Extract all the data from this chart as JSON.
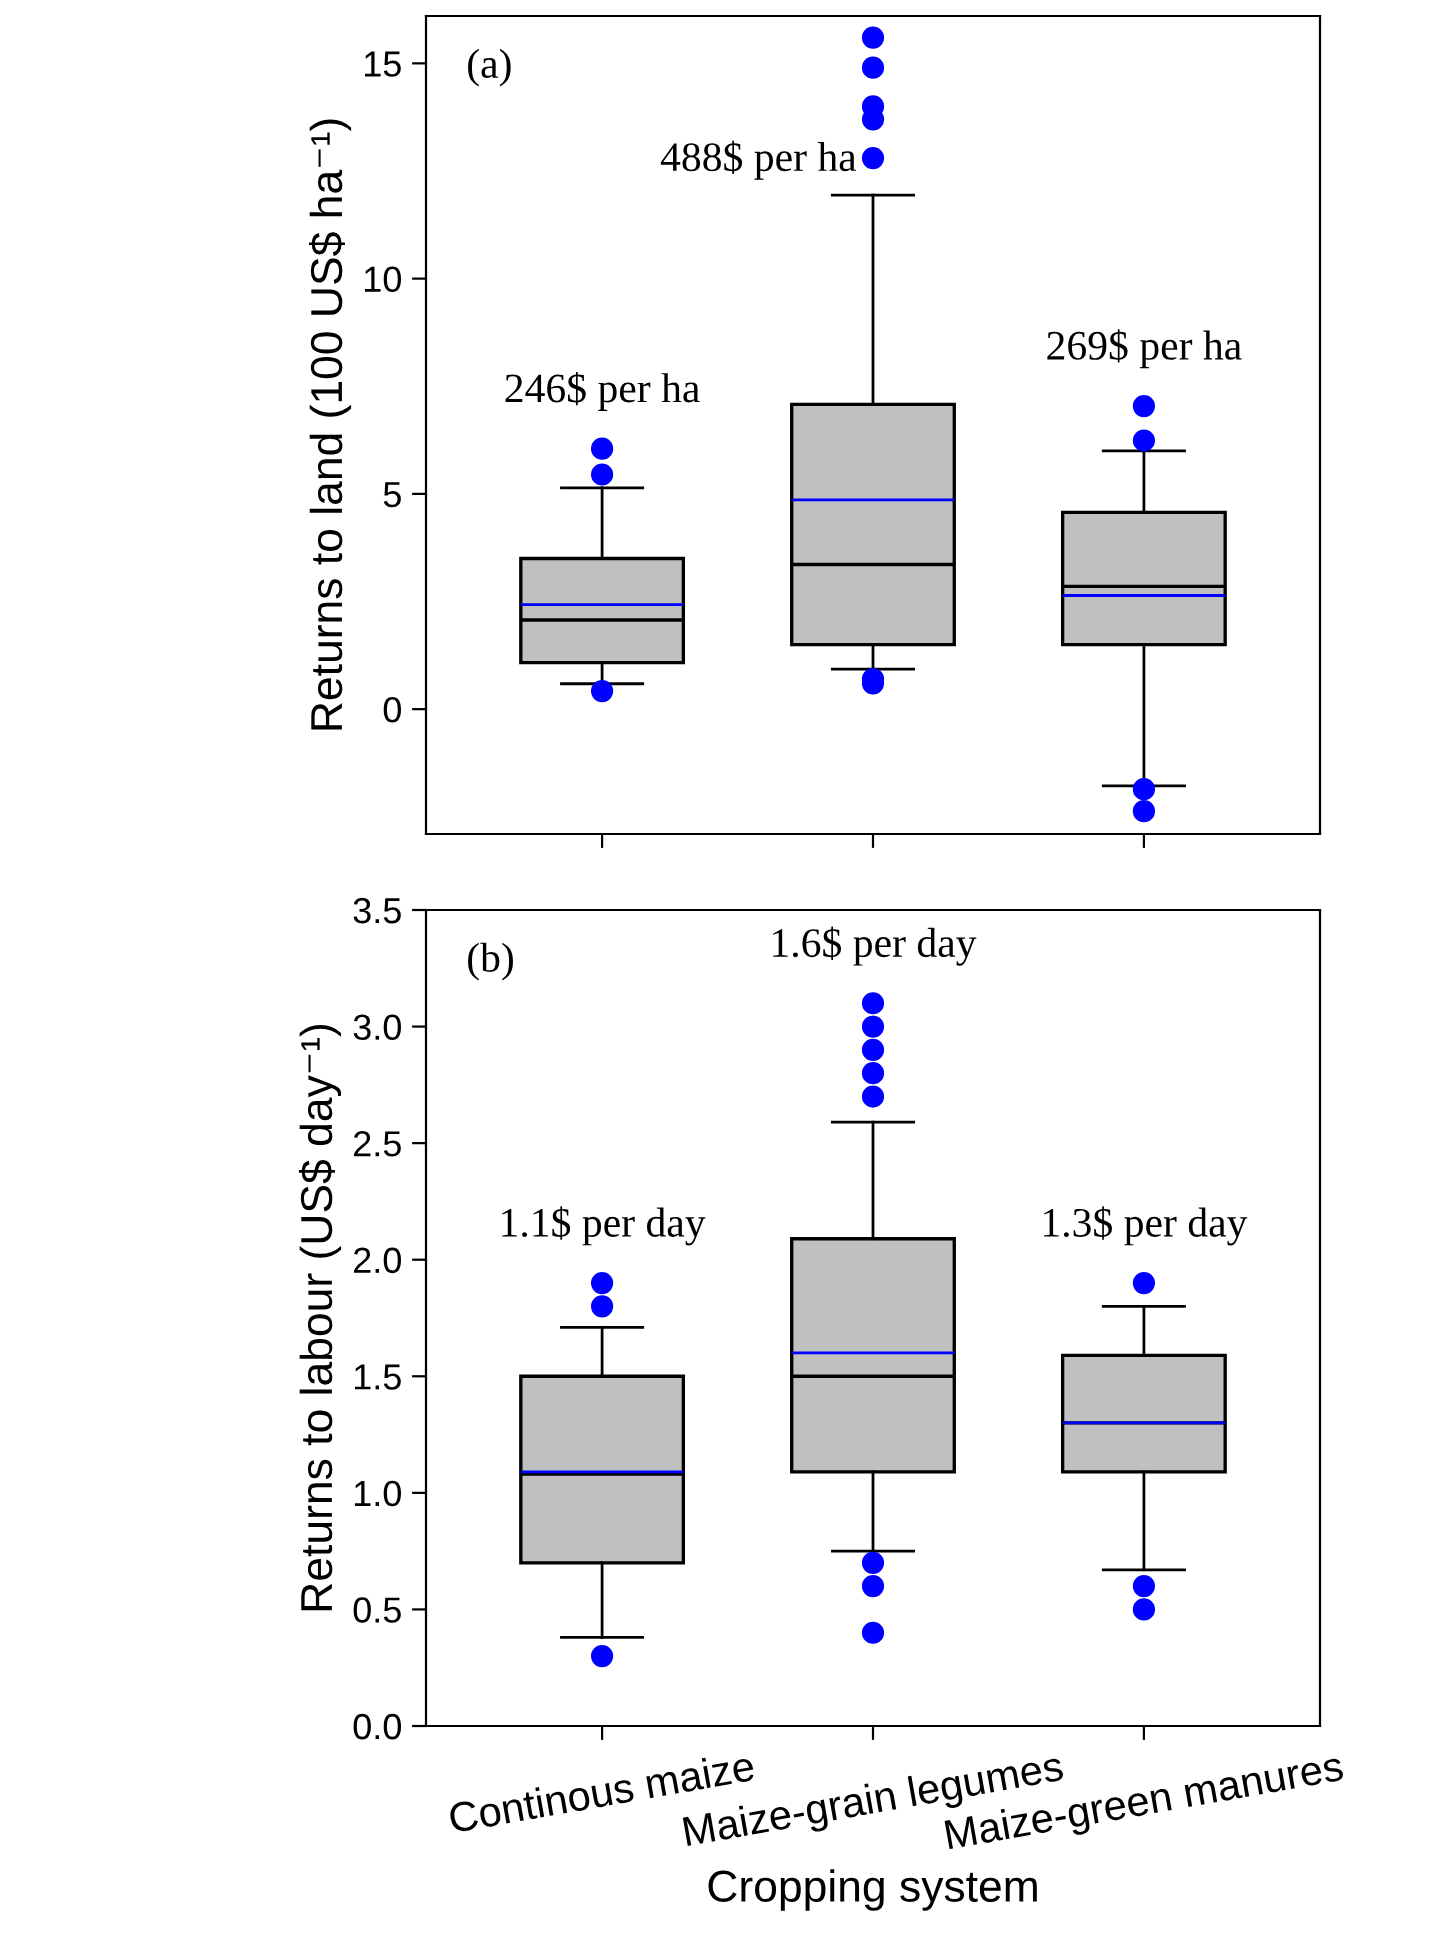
{
  "chart_data": [
    {
      "type": "box",
      "ylabel": "Returns to land (100 US$ ha⁻¹)",
      "categories": [
        null,
        null,
        null
      ],
      "ylim": [
        -2.9,
        16.1
      ],
      "yticks": [
        0,
        5,
        10,
        15
      ],
      "tick_labels": "y",
      "grid": false,
      "color": "#c0c0c0",
      "boxes": [
        {
          "low": 0.59,
          "q1": 1.08,
          "median": 2.07,
          "q3": 3.5,
          "high": 5.14,
          "mean": 2.43,
          "outliers": [
            6.05,
            5.45,
            0.42
          ]
        },
        {
          "low": 0.93,
          "q1": 1.5,
          "median": 3.36,
          "q3": 7.08,
          "high": 11.94,
          "mean": 4.86,
          "outliers": [
            15.6,
            14.9,
            14.0,
            13.7,
            12.8,
            0.7,
            0.6
          ]
        },
        {
          "low": -1.78,
          "q1": 1.5,
          "median": 2.85,
          "q3": 4.57,
          "high": 6.0,
          "mean": 2.64,
          "outliers": [
            7.04,
            6.24,
            -1.86,
            -2.37
          ]
        }
      ],
      "annotations": [
        "(a)",
        "246$ per ha",
        "488$ per ha",
        "269$ per ha"
      ]
    },
    {
      "type": "box",
      "ylabel": "Returns to labour (US$ day⁻¹)",
      "xlabel": "Cropping system",
      "categories": [
        "Continous maize",
        "Maize-grain legumes",
        "Maize-green manures"
      ],
      "ylim": [
        0,
        3.5
      ],
      "yticks": [
        {
          "value": 0,
          "label": "0.0"
        },
        {
          "value": 0.5,
          "label": "0.5"
        },
        {
          "value": 1,
          "label": "1.0"
        },
        {
          "value": 1.5,
          "label": "1.5"
        },
        {
          "value": 2,
          "label": "2.0"
        },
        {
          "value": 2.5,
          "label": "2.5"
        },
        {
          "value": 3,
          "label": "3.0"
        },
        {
          "value": 3.5,
          "label": "3.5"
        }
      ],
      "grid": false,
      "color": "#c0c0c0",
      "boxes": [
        {
          "low": 0.38,
          "q1": 0.7,
          "median": 1.08,
          "q3": 1.5,
          "high": 1.71,
          "mean": 1.09,
          "outliers": [
            1.9,
            1.8,
            0.3
          ]
        },
        {
          "low": 0.75,
          "q1": 1.09,
          "median": 1.5,
          "q3": 2.09,
          "high": 2.59,
          "mean": 1.6,
          "outliers": [
            3.1,
            3.0,
            2.9,
            2.8,
            2.7,
            0.7,
            0.6,
            0.4
          ]
        },
        {
          "low": 0.67,
          "q1": 1.09,
          "median": 1.3,
          "q3": 1.59,
          "high": 1.8,
          "mean": 1.3,
          "outliers": [
            1.9,
            0.6,
            0.5
          ]
        }
      ],
      "annotations": [
        "(b)",
        "1.1$ per day",
        "1.6$ per day",
        "1.3$ per day"
      ]
    }
  ]
}
